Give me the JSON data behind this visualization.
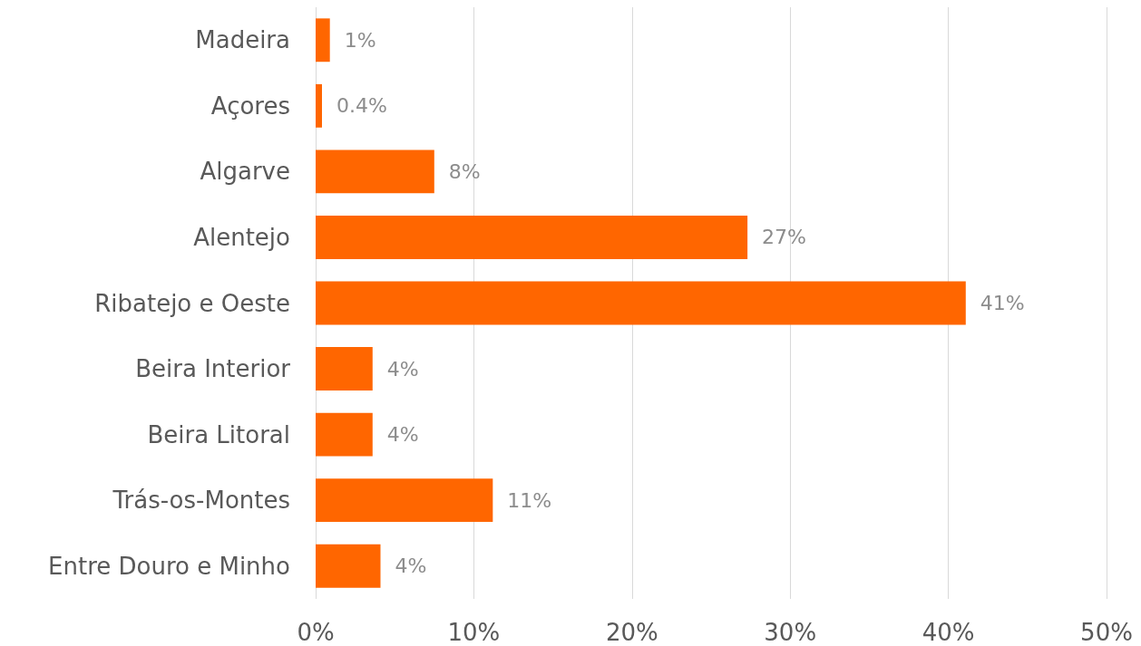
{
  "chart_data": {
    "type": "bar",
    "orientation": "horizontal",
    "categories": [
      "Madeira",
      "Açores",
      "Algarve",
      "Alentejo",
      "Ribatejo e Oeste",
      "Beira Interior",
      "Beira Litoral",
      "Trás-os-Montes",
      "Entre Douro e Minho"
    ],
    "values": [
      0.9,
      0.4,
      7.5,
      27.3,
      41.1,
      3.6,
      3.6,
      11.2,
      4.1
    ],
    "value_labels": [
      "1%",
      "0.4%",
      "8%",
      "27%",
      "41%",
      "4%",
      "4%",
      "11%",
      "4%"
    ],
    "color": "#ff6600",
    "xlim": [
      0,
      50
    ],
    "xticks": [
      {
        "value": 0,
        "label": "0%"
      },
      {
        "value": 10,
        "label": "10%"
      },
      {
        "value": 20,
        "label": "20%"
      },
      {
        "value": 30,
        "label": "30%"
      },
      {
        "value": 40,
        "label": "40%"
      },
      {
        "value": 50,
        "label": "50%"
      }
    ],
    "grid": "x"
  }
}
